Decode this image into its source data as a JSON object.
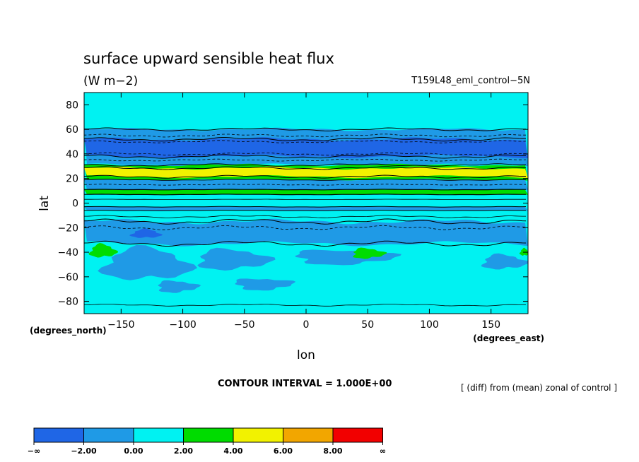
{
  "chart_data": {
    "type": "contour",
    "title": "surface upward sensible heat flux",
    "units": "(W m−2)",
    "experiment": "T159L48_eml_control−5N",
    "xlabel": "lon",
    "ylabel": "lat",
    "x_units": "(degrees_east)",
    "y_units": "(degrees_north)",
    "xlim": [
      -180,
      180
    ],
    "ylim": [
      -90,
      90
    ],
    "x_ticks": [
      -150,
      -100,
      -50,
      0,
      50,
      100,
      150
    ],
    "x_tick_labels": [
      "−150",
      "−100",
      "−50",
      "0",
      "50",
      "100",
      "150"
    ],
    "y_ticks": [
      80,
      60,
      40,
      20,
      0,
      -20,
      -40,
      -60,
      -80
    ],
    "y_tick_labels": [
      "80",
      "60",
      "40",
      "20",
      "0",
      "−20",
      "−40",
      "−60",
      "−80"
    ],
    "contour_interval": "CONTOUR INTERVAL = 1.000E+00",
    "note": "[ (diff) from (mean) zonal of control ]",
    "colorbar": {
      "boundary_labels": [
        "−∞",
        "−2.00",
        "0.00",
        "2.00",
        "4.00",
        "6.00",
        "8.00",
        "∞"
      ],
      "colors": [
        "#1f66e6",
        "#1f9ae6",
        "#00f2f2",
        "#00dc00",
        "#f2f200",
        "#f2a600",
        "#f20000"
      ]
    },
    "fill_levels": {
      "dark_blue": "#1f66e6",
      "mid_blue": "#1f9ae6",
      "cyan": "#00f2f2",
      "green": "#00dc00",
      "yellow": "#f2f200"
    }
  }
}
